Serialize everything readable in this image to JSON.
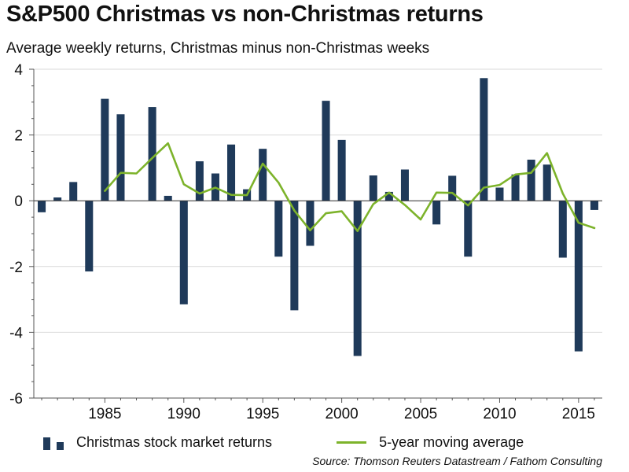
{
  "header": {
    "title": "S&P500 Christmas vs non-Christmas returns",
    "subtitle": "Average weekly returns, Christmas minus non-Christmas weeks"
  },
  "legend": {
    "bars_label": "Christmas stock market returns",
    "line_label": "5-year moving average"
  },
  "source": "Source: Thomson Reuters Datastream / Fathom Consulting",
  "colors": {
    "bar": "#1f3a5a",
    "line": "#7db32b",
    "grid": "#d9d9d9",
    "axis": "#555555"
  },
  "chart_data": {
    "type": "bar",
    "grid": true,
    "legend_position": "bottom",
    "xlim": [
      1980.5,
      2016.5
    ],
    "ylim": [
      -6,
      4
    ],
    "x_ticks": [
      1985,
      1990,
      1995,
      2000,
      2005,
      2010,
      2015
    ],
    "y_ticks": [
      -6,
      -4,
      -2,
      0,
      2,
      4
    ],
    "x_tick_labels": [
      "1985",
      "1990",
      "1995",
      "2000",
      "2005",
      "2010",
      "2015"
    ],
    "y_tick_labels": [
      "-6",
      "-4",
      "-2",
      "0",
      "2",
      "4"
    ],
    "series": [
      {
        "name": "Christmas stock market returns",
        "type": "bar",
        "x": [
          1981,
          1982,
          1983,
          1984,
          1985,
          1986,
          1987,
          1988,
          1989,
          1990,
          1991,
          1992,
          1993,
          1994,
          1995,
          1996,
          1997,
          1998,
          1999,
          2000,
          2001,
          2002,
          2003,
          2004,
          2005,
          2006,
          2007,
          2008,
          2009,
          2010,
          2011,
          2012,
          2013,
          2014,
          2015,
          2016
        ],
        "values": [
          -0.35,
          0.1,
          0.57,
          -2.15,
          3.1,
          2.63,
          0.0,
          2.85,
          0.15,
          -3.15,
          1.2,
          0.83,
          1.71,
          0.35,
          1.58,
          -1.7,
          -3.33,
          -1.37,
          3.04,
          1.85,
          -4.72,
          0.77,
          0.27,
          0.95,
          0.0,
          -0.72,
          0.76,
          -1.7,
          3.73,
          0.4,
          0.8,
          1.25,
          1.1,
          -1.73,
          -4.58,
          -0.28
        ]
      },
      {
        "name": "5-year moving average",
        "type": "line",
        "x": [
          1985,
          1986,
          1987,
          1988,
          1989,
          1990,
          1991,
          1992,
          1993,
          1994,
          1995,
          1996,
          1997,
          1998,
          1999,
          2000,
          2001,
          2002,
          2003,
          2004,
          2005,
          2006,
          2007,
          2008,
          2009,
          2010,
          2011,
          2012,
          2013,
          2014,
          2015,
          2016
        ],
        "values": [
          0.3,
          0.85,
          0.83,
          1.3,
          1.75,
          0.5,
          0.22,
          0.4,
          0.18,
          0.17,
          1.13,
          0.55,
          -0.3,
          -0.9,
          -0.38,
          -0.32,
          -0.92,
          -0.1,
          0.25,
          -0.13,
          -0.57,
          0.25,
          0.24,
          -0.14,
          0.4,
          0.48,
          0.8,
          0.85,
          1.45,
          0.22,
          -0.67,
          -0.83
        ]
      }
    ]
  }
}
